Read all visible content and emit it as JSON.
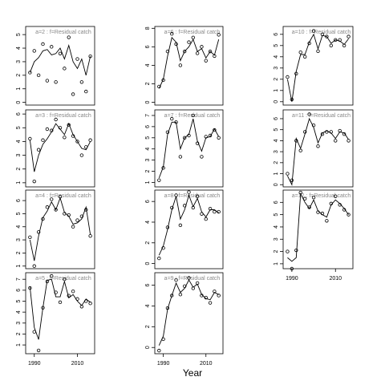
{
  "figure": {
    "xlabel": "Year"
  },
  "chart_data": [
    {
      "type": "line",
      "title": "a=2  :  f=Residual catch",
      "x": [
        1988,
        1990,
        1992,
        1994,
        1996,
        1998,
        2000,
        2002,
        2004,
        2006,
        2008,
        2010,
        2012,
        2014,
        2016
      ],
      "xlim": [
        1986,
        2018
      ],
      "ylim": [
        -0.2,
        5.6
      ],
      "yticks": [
        0,
        1,
        2,
        3,
        4,
        5
      ],
      "color": "#000000",
      "series": [
        {
          "style": "points",
          "values": [
            2.2,
            3.8,
            2.0,
            4.3,
            1.6,
            4.1,
            1.5,
            3.6,
            2.5,
            4.8,
            0.6,
            3.2,
            1.5,
            0.8,
            3.4
          ]
        },
        {
          "style": "line",
          "values": [
            2.2,
            3.0,
            3.3,
            3.8,
            3.9,
            3.5,
            3.6,
            4.0,
            3.2,
            4.2,
            3.0,
            2.5,
            3.2,
            2.0,
            3.4
          ]
        }
      ]
    },
    {
      "type": "line",
      "title": "a=3  :  f=Residual catch",
      "x": [
        1988,
        1990,
        1992,
        1994,
        1996,
        1998,
        2000,
        2002,
        2004,
        2006,
        2008,
        2010,
        2012,
        2014,
        2016
      ],
      "xlim": [
        1986,
        2018
      ],
      "ylim": [
        0.7,
        6.3
      ],
      "yticks": [
        1,
        2,
        3,
        4,
        5,
        6
      ],
      "color": "#000000",
      "series": [
        {
          "style": "points",
          "values": [
            4.2,
            1.1,
            3.4,
            4.1,
            4.9,
            4.8,
            5.6,
            5.0,
            4.3,
            5.2,
            4.4,
            4.0,
            3.0,
            3.6,
            4.1
          ]
        },
        {
          "style": "line",
          "values": [
            4.1,
            1.8,
            3.0,
            3.8,
            4.2,
            4.7,
            5.3,
            4.9,
            4.5,
            5.3,
            4.5,
            4.0,
            3.5,
            3.4,
            4.0
          ]
        }
      ]
    },
    {
      "type": "line",
      "title": "a=4  :  f=Residual catch",
      "x": [
        1988,
        1990,
        1992,
        1994,
        1996,
        1998,
        2000,
        2002,
        2004,
        2006,
        2008,
        2010,
        2012,
        2014,
        2016
      ],
      "xlim": [
        1986,
        2018
      ],
      "ylim": [
        0.8,
        6.8
      ],
      "yticks": [
        1,
        2,
        3,
        4,
        5,
        6
      ],
      "color": "#000000",
      "series": [
        {
          "style": "points",
          "values": [
            3.2,
            1.0,
            3.6,
            4.6,
            5.5,
            6.1,
            5.3,
            6.3,
            5.0,
            4.9,
            4.0,
            4.5,
            4.8,
            5.3,
            3.3
          ]
        },
        {
          "style": "line",
          "values": [
            3.0,
            1.4,
            3.3,
            4.7,
            5.2,
            5.9,
            5.3,
            6.2,
            5.1,
            4.8,
            4.2,
            4.3,
            4.6,
            5.5,
            3.4
          ]
        }
      ]
    },
    {
      "type": "line",
      "title": "a=5  :  f=Residual catch",
      "x": [
        1988,
        1990,
        1992,
        1994,
        1996,
        1998,
        2000,
        2002,
        2004,
        2006,
        2008,
        2010,
        2012,
        2014,
        2016
      ],
      "xlim": [
        1986,
        2018
      ],
      "ylim": [
        0.2,
        7.6
      ],
      "yticks": [
        1,
        2,
        3,
        4,
        5,
        6,
        7
      ],
      "xticks": [
        1990,
        2010
      ],
      "color": "#000000",
      "series": [
        {
          "style": "points",
          "values": [
            6.2,
            2.2,
            0.5,
            4.4,
            6.8,
            7.3,
            5.8,
            4.9,
            7.0,
            5.5,
            5.9,
            5.2,
            4.5,
            5.0,
            4.8
          ]
        },
        {
          "style": "line",
          "values": [
            6.3,
            2.6,
            1.5,
            4.4,
            6.9,
            7.0,
            5.4,
            5.4,
            6.8,
            5.3,
            5.6,
            5.0,
            4.6,
            5.2,
            4.9
          ]
        }
      ]
    },
    {
      "type": "line",
      "title": "a=6  :  f=Residual catch",
      "x": [
        1988,
        1990,
        1992,
        1994,
        1996,
        1998,
        2000,
        2002,
        2004,
        2006,
        2008,
        2010,
        2012,
        2014,
        2016
      ],
      "xlim": [
        1986,
        2018
      ],
      "ylim": [
        -0.3,
        8.2
      ],
      "yticks": [
        0,
        2,
        4,
        6,
        8
      ],
      "color": "#000000",
      "series": [
        {
          "style": "points",
          "values": [
            1.7,
            2.4,
            5.5,
            7.4,
            6.3,
            4.0,
            5.5,
            6.5,
            7.0,
            5.3,
            6.0,
            4.5,
            5.5,
            5.0,
            7.3
          ]
        },
        {
          "style": "line",
          "values": [
            1.5,
            2.5,
            5.0,
            7.0,
            6.5,
            4.5,
            5.5,
            6.0,
            6.8,
            5.5,
            5.8,
            4.8,
            5.5,
            5.1,
            6.8
          ]
        }
      ]
    },
    {
      "type": "line",
      "title": "a=7  :  f=Residual catch",
      "x": [
        1988,
        1990,
        1992,
        1994,
        1996,
        1998,
        2000,
        2002,
        2004,
        2006,
        2008,
        2010,
        2012,
        2014,
        2016
      ],
      "xlim": [
        1986,
        2018
      ],
      "ylim": [
        0.6,
        7.5
      ],
      "yticks": [
        1,
        2,
        3,
        4,
        5,
        6,
        7
      ],
      "color": "#000000",
      "series": [
        {
          "style": "points",
          "values": [
            1.2,
            2.3,
            5.5,
            6.7,
            6.4,
            3.3,
            5.0,
            5.2,
            7.0,
            4.5,
            3.3,
            5.1,
            5.2,
            5.7,
            5.0
          ]
        },
        {
          "style": "line",
          "values": [
            1.4,
            2.4,
            5.3,
            6.4,
            6.4,
            4.0,
            5.0,
            5.3,
            6.7,
            4.7,
            3.8,
            5.0,
            5.1,
            5.8,
            5.1
          ]
        }
      ]
    },
    {
      "type": "line",
      "title": "a=8  :  f=Residual catch",
      "x": [
        1988,
        1990,
        1992,
        1994,
        1996,
        1998,
        2000,
        2002,
        2004,
        2006,
        2008,
        2010,
        2012,
        2014,
        2016
      ],
      "xlim": [
        1986,
        2018
      ],
      "ylim": [
        -0.5,
        7.1
      ],
      "yticks": [
        0,
        2,
        4,
        6
      ],
      "color": "#000000",
      "series": [
        {
          "style": "points",
          "values": [
            0.5,
            1.5,
            3.5,
            5.4,
            6.6,
            3.7,
            5.6,
            6.9,
            5.4,
            6.5,
            4.8,
            4.3,
            5.3,
            5.0,
            5.0
          ]
        },
        {
          "style": "line",
          "values": [
            0.8,
            1.7,
            3.3,
            5.2,
            6.5,
            4.3,
            5.2,
            6.6,
            5.5,
            6.3,
            5.0,
            4.5,
            5.2,
            5.2,
            4.9
          ]
        }
      ]
    },
    {
      "type": "line",
      "title": "a=9  :  f=Residual catch",
      "x": [
        1988,
        1990,
        1992,
        1994,
        1996,
        1998,
        2000,
        2002,
        2004,
        2006,
        2008,
        2010,
        2012,
        2014,
        2016
      ],
      "xlim": [
        1986,
        2018
      ],
      "ylim": [
        -0.6,
        7.2
      ],
      "yticks": [
        0,
        2,
        4,
        6
      ],
      "xticks": [
        1990,
        2010
      ],
      "color": "#000000",
      "series": [
        {
          "style": "points",
          "values": [
            -0.3,
            0.8,
            3.8,
            5.0,
            6.5,
            5.1,
            5.9,
            6.7,
            5.7,
            6.2,
            5.0,
            4.8,
            4.3,
            5.4,
            5.0
          ]
        },
        {
          "style": "line",
          "values": [
            0.2,
            1.1,
            3.7,
            5.0,
            6.2,
            5.3,
            5.7,
            6.5,
            5.8,
            6.1,
            5.1,
            4.7,
            4.6,
            5.3,
            5.1
          ]
        }
      ]
    },
    {
      "type": "line",
      "title": "a=10  :  f=Residual catch",
      "x": [
        1988,
        1990,
        1992,
        1994,
        1996,
        1998,
        2000,
        2002,
        2004,
        2006,
        2008,
        2010,
        2012,
        2014,
        2016
      ],
      "xlim": [
        1986,
        2018
      ],
      "ylim": [
        -0.3,
        6.7
      ],
      "yticks": [
        0,
        1,
        2,
        3,
        4,
        5,
        6
      ],
      "color": "#000000",
      "series": [
        {
          "style": "points",
          "values": [
            2.2,
            0.2,
            2.5,
            4.4,
            4.0,
            5.2,
            6.3,
            4.5,
            6.0,
            5.8,
            5.0,
            5.5,
            5.5,
            5.0,
            5.8
          ]
        },
        {
          "style": "line",
          "values": [
            2.0,
            0.0,
            2.7,
            4.2,
            4.2,
            5.3,
            6.0,
            4.7,
            5.9,
            5.8,
            5.2,
            5.5,
            5.4,
            5.1,
            5.6
          ]
        }
      ]
    },
    {
      "type": "line",
      "title": "a=11  :  f=Residual catch",
      "x": [
        1988,
        1990,
        1992,
        1994,
        1996,
        1998,
        2000,
        2002,
        2004,
        2006,
        2008,
        2010,
        2012,
        2014,
        2016
      ],
      "xlim": [
        1986,
        2018
      ],
      "ylim": [
        -0.2,
        6.8
      ],
      "yticks": [
        0,
        1,
        2,
        3,
        4,
        5,
        6
      ],
      "color": "#000000",
      "series": [
        {
          "style": "points",
          "values": [
            1.0,
            0.4,
            4.0,
            3.1,
            4.8,
            6.4,
            5.4,
            3.5,
            4.6,
            4.8,
            4.8,
            4.0,
            4.9,
            4.6,
            4.0
          ]
        },
        {
          "style": "line",
          "values": [
            0.8,
            0.0,
            4.2,
            3.3,
            4.6,
            6.0,
            5.2,
            3.8,
            4.7,
            4.9,
            4.7,
            4.2,
            4.8,
            4.7,
            4.1
          ]
        }
      ]
    },
    {
      "type": "line",
      "title": "a=12  :  f=Residual catch",
      "x": [
        1988,
        1990,
        1992,
        1994,
        1996,
        1998,
        2000,
        2002,
        2004,
        2006,
        2008,
        2010,
        2012,
        2014,
        2016
      ],
      "xlim": [
        1986,
        2018
      ],
      "ylim": [
        0.6,
        7.0
      ],
      "yticks": [
        1,
        2,
        3,
        4,
        5,
        6
      ],
      "xticks": [
        1990,
        2010
      ],
      "color": "#000000",
      "series": [
        {
          "style": "points",
          "values": [
            2.0,
            0.6,
            2.1,
            6.8,
            6.3,
            5.6,
            6.4,
            5.2,
            5.1,
            4.5,
            5.9,
            6.5,
            5.8,
            5.4,
            5.0
          ]
        },
        {
          "style": "line",
          "values": [
            1.5,
            1.2,
            1.5,
            6.7,
            6.0,
            5.5,
            6.2,
            5.3,
            5.0,
            4.8,
            5.8,
            6.2,
            5.9,
            5.5,
            5.0
          ]
        }
      ]
    }
  ]
}
